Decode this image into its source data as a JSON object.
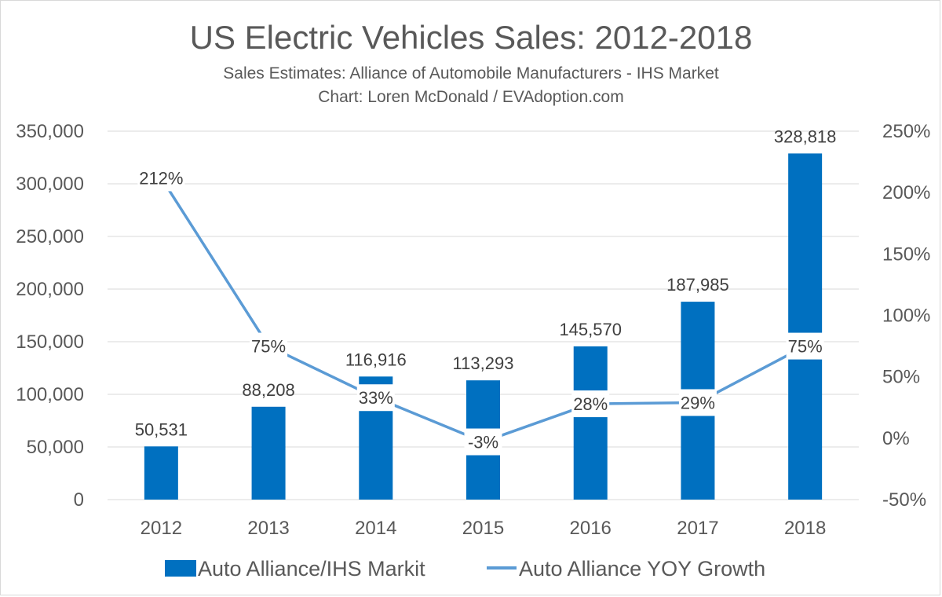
{
  "chart_data": {
    "type": "bar",
    "title": "US Electric Vehicles Sales: 2012-2018",
    "subtitle_lines": [
      "Sales Estimates: Alliance of Automobile Manufacturers - IHS Market",
      "Chart: Loren McDonald / EVAdoption.com"
    ],
    "categories": [
      "2012",
      "2013",
      "2014",
      "2015",
      "2016",
      "2017",
      "2018"
    ],
    "series": [
      {
        "name": "Auto Alliance/IHS Markit",
        "type": "bar",
        "axis": "left",
        "color": "#0070c0",
        "values": [
          50531,
          88208,
          116916,
          113293,
          145570,
          187985,
          328818
        ],
        "labels": [
          "50,531",
          "88,208",
          "116,916",
          "113,293",
          "145,570",
          "187,985",
          "328,818"
        ]
      },
      {
        "name": "Auto Alliance YOY Growth",
        "type": "line",
        "axis": "right",
        "color": "#5b9bd5",
        "values": [
          212,
          75,
          33,
          -3,
          28,
          29,
          75
        ],
        "labels": [
          "212%",
          "75%",
          "33%",
          "-3%",
          "28%",
          "29%",
          "75%"
        ],
        "negative_label_color": "#c00000"
      }
    ],
    "y_left": {
      "ylim": [
        0,
        350000
      ],
      "ticks": [
        0,
        50000,
        100000,
        150000,
        200000,
        250000,
        300000,
        350000
      ],
      "tick_labels": [
        "0",
        "50,000",
        "100,000",
        "150,000",
        "200,000",
        "250,000",
        "300,000",
        "350,000"
      ]
    },
    "y_right": {
      "ylim": [
        -50,
        250
      ],
      "ticks": [
        -50,
        0,
        50,
        100,
        150,
        200,
        250
      ],
      "tick_labels": [
        "-50%",
        "0%",
        "50%",
        "100%",
        "150%",
        "200%",
        "250%"
      ]
    },
    "grid": true,
    "legend_position": "bottom",
    "gridline_color": "#d9d9d9"
  }
}
